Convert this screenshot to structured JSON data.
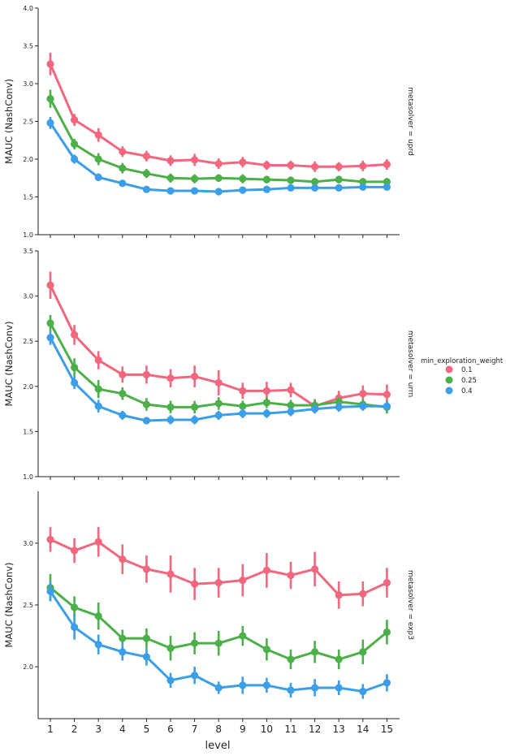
{
  "chart_data": {
    "type": "line",
    "x": [
      1,
      2,
      3,
      4,
      5,
      6,
      7,
      8,
      9,
      10,
      11,
      12,
      13,
      14,
      15
    ],
    "xlabel": "level",
    "legend": {
      "title": "min_exploration_weight",
      "entries": [
        {
          "name": "0.1",
          "color": "#f0677f"
        },
        {
          "name": "0.25",
          "color": "#4daf4a"
        },
        {
          "name": "0.4",
          "color": "#3b9ee6"
        }
      ],
      "placement": "right"
    },
    "panels": [
      {
        "facet_label": "metasolver = uprd",
        "ylabel": "MAUC (NashConv)",
        "ylim": [
          1.0,
          4.0
        ],
        "yticks": [
          "1.0",
          "1.5",
          "2.0",
          "2.5",
          "3.0",
          "3.5",
          "4.0"
        ],
        "series": [
          {
            "name": "0.1",
            "values": [
              3.26,
              2.52,
              2.32,
              2.1,
              2.04,
              1.98,
              1.99,
              1.94,
              1.96,
              1.92,
              1.92,
              1.9,
              1.9,
              1.91,
              1.93
            ],
            "err": [
              0.15,
              0.08,
              0.09,
              0.07,
              0.07,
              0.07,
              0.08,
              0.07,
              0.07,
              0.06,
              0.06,
              0.07,
              0.06,
              0.07,
              0.07
            ]
          },
          {
            "name": "0.25",
            "values": [
              2.8,
              2.2,
              2.0,
              1.88,
              1.81,
              1.75,
              1.74,
              1.75,
              1.74,
              1.73,
              1.72,
              1.7,
              1.73,
              1.7,
              1.7
            ],
            "err": [
              0.12,
              0.07,
              0.08,
              0.07,
              0.06,
              0.06,
              0.06,
              0.05,
              0.06,
              0.05,
              0.05,
              0.05,
              0.05,
              0.05,
              0.05
            ]
          },
          {
            "name": "0.4",
            "values": [
              2.48,
              2.0,
              1.76,
              1.68,
              1.6,
              1.58,
              1.58,
              1.57,
              1.59,
              1.6,
              1.62,
              1.62,
              1.62,
              1.63,
              1.63
            ],
            "err": [
              0.08,
              0.06,
              0.05,
              0.04,
              0.04,
              0.04,
              0.04,
              0.04,
              0.04,
              0.04,
              0.04,
              0.04,
              0.04,
              0.04,
              0.04
            ]
          }
        ]
      },
      {
        "facet_label": "metasolver = urrn",
        "ylabel": "MAUC (NashConv)",
        "ylim": [
          1.0,
          3.5
        ],
        "yticks": [
          "1.0",
          "1.5",
          "2.0",
          "2.5",
          "3.0",
          "3.5"
        ],
        "series": [
          {
            "name": "0.1",
            "values": [
              3.12,
              2.57,
              2.29,
              2.13,
              2.13,
              2.09,
              2.11,
              2.04,
              1.95,
              1.95,
              1.96,
              1.78,
              1.87,
              1.92,
              1.91
            ],
            "err": [
              0.15,
              0.11,
              0.1,
              0.09,
              0.1,
              0.1,
              0.12,
              0.14,
              0.09,
              0.1,
              0.08,
              0.08,
              0.08,
              0.09,
              0.11
            ]
          },
          {
            "name": "0.25",
            "values": [
              2.7,
              2.21,
              1.97,
              1.92,
              1.8,
              1.77,
              1.77,
              1.81,
              1.78,
              1.82,
              1.79,
              1.79,
              1.83,
              1.8,
              1.77
            ],
            "err": [
              0.09,
              0.1,
              0.1,
              0.07,
              0.07,
              0.07,
              0.07,
              0.07,
              0.06,
              0.06,
              0.06,
              0.06,
              0.05,
              0.06,
              0.07
            ]
          },
          {
            "name": "0.4",
            "values": [
              2.54,
              2.04,
              1.78,
              1.68,
              1.62,
              1.63,
              1.63,
              1.68,
              1.7,
              1.7,
              1.72,
              1.75,
              1.77,
              1.78,
              1.78
            ],
            "err": [
              0.08,
              0.07,
              0.07,
              0.05,
              0.04,
              0.05,
              0.05,
              0.05,
              0.05,
              0.05,
              0.05,
              0.05,
              0.05,
              0.05,
              0.05
            ]
          }
        ]
      },
      {
        "facet_label": "metasolver = exp3",
        "ylabel": "MAUC (NashConv)",
        "ylim": [
          1.58,
          3.42
        ],
        "yticks": [
          "2.0",
          "2.5",
          "3.0"
        ],
        "series": [
          {
            "name": "0.1",
            "values": [
              3.03,
              2.94,
              3.01,
              2.87,
              2.79,
              2.75,
              2.67,
              2.68,
              2.7,
              2.78,
              2.74,
              2.79,
              2.58,
              2.59,
              2.68
            ],
            "err": [
              0.1,
              0.1,
              0.12,
              0.12,
              0.11,
              0.15,
              0.13,
              0.12,
              0.13,
              0.14,
              0.11,
              0.14,
              0.11,
              0.1,
              0.12
            ]
          },
          {
            "name": "0.25",
            "values": [
              2.64,
              2.48,
              2.41,
              2.23,
              2.23,
              2.15,
              2.19,
              2.19,
              2.25,
              2.14,
              2.06,
              2.12,
              2.06,
              2.12,
              2.28
            ],
            "err": [
              0.11,
              0.09,
              0.11,
              0.07,
              0.08,
              0.1,
              0.09,
              0.1,
              0.08,
              0.09,
              0.08,
              0.09,
              0.08,
              0.1,
              0.1
            ]
          },
          {
            "name": "0.4",
            "values": [
              2.61,
              2.32,
              2.18,
              2.12,
              2.08,
              1.89,
              1.93,
              1.83,
              1.85,
              1.85,
              1.81,
              1.83,
              1.83,
              1.8,
              1.87
            ],
            "err": [
              0.08,
              0.1,
              0.08,
              0.07,
              0.07,
              0.06,
              0.07,
              0.05,
              0.07,
              0.06,
              0.06,
              0.07,
              0.06,
              0.06,
              0.07
            ]
          }
        ]
      }
    ]
  }
}
